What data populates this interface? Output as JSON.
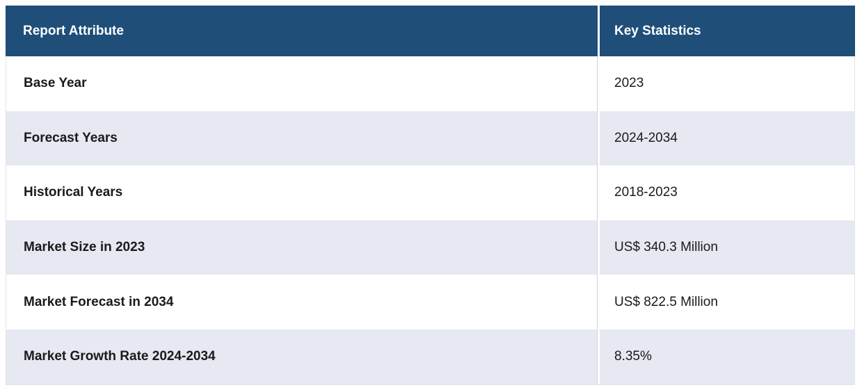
{
  "chart_data": {
    "type": "table",
    "columns": [
      "Report Attribute",
      "Key Statistics"
    ],
    "rows": [
      {
        "attribute": "Base Year",
        "value": "2023"
      },
      {
        "attribute": "Forecast Years",
        "value": "2024-2034"
      },
      {
        "attribute": "Historical Years",
        "value": "2018-2023"
      },
      {
        "attribute": "Market Size in 2023",
        "value": "US$ 340.3 Million"
      },
      {
        "attribute": "Market Forecast in 2034",
        "value": "US$ 822.5 Million"
      },
      {
        "attribute": "Market Growth Rate 2024-2034",
        "value": "8.35%"
      }
    ],
    "legend": "off",
    "grid": "row-stripes"
  },
  "colors": {
    "header_bg": "#1f4e79",
    "header_text": "#ffffff",
    "row_bg": "#ffffff",
    "row_alt_bg": "#e6e8f2",
    "body_text": "#1a1a1a"
  }
}
